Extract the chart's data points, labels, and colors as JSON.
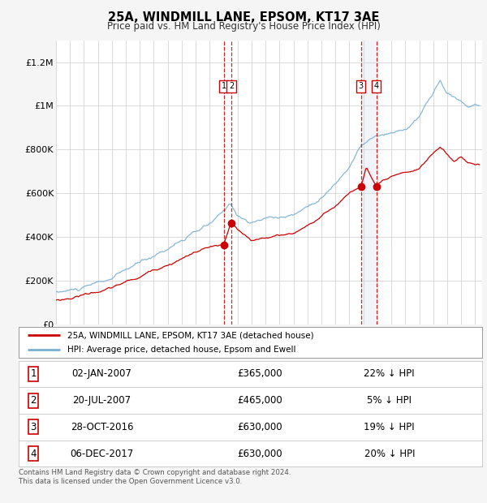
{
  "title": "25A, WINDMILL LANE, EPSOM, KT17 3AE",
  "subtitle": "Price paid vs. HM Land Registry's House Price Index (HPI)",
  "ylim": [
    0,
    1300000
  ],
  "yticks": [
    0,
    200000,
    400000,
    600000,
    800000,
    1000000,
    1200000
  ],
  "ytick_labels": [
    "£0",
    "£200K",
    "£400K",
    "£600K",
    "£800K",
    "£1M",
    "£1.2M"
  ],
  "legend_line1": "25A, WINDMILL LANE, EPSOM, KT17 3AE (detached house)",
  "legend_line2": "HPI: Average price, detached house, Epsom and Ewell",
  "line1_color": "#cc0000",
  "line2_color": "#7ab0d4",
  "sale_year_floats": [
    2007.01,
    2007.55,
    2016.83,
    2017.92
  ],
  "sale_prices": [
    365000,
    465000,
    630000,
    630000
  ],
  "sale_labels": [
    "1",
    "2",
    "3",
    "4"
  ],
  "table_data": [
    [
      "1",
      "02-JAN-2007",
      "£365,000",
      "22% ↓ HPI"
    ],
    [
      "2",
      "20-JUL-2007",
      "£465,000",
      "5% ↓ HPI"
    ],
    [
      "3",
      "28-OCT-2016",
      "£630,000",
      "19% ↓ HPI"
    ],
    [
      "4",
      "06-DEC-2017",
      "£630,000",
      "20% ↓ HPI"
    ]
  ],
  "footnote1": "Contains HM Land Registry data © Crown copyright and database right 2024.",
  "footnote2": "This data is licensed under the Open Government Licence v3.0.",
  "bg_color": "#f5f5f5",
  "plot_bg_color": "#ffffff",
  "grid_color": "#cccccc",
  "vline_color": "#cc0000",
  "shade_color": "#c8d8e8",
  "hpi_anchors_x": [
    1995,
    1997,
    1999,
    2000,
    2001,
    2002,
    2003,
    2004,
    2005,
    2006,
    2007,
    2007.5,
    2008,
    2009,
    2010,
    2011,
    2012,
    2013,
    2014,
    2015,
    2016,
    2016.5,
    2017,
    2017.5,
    2018,
    2019,
    2020,
    2021,
    2022,
    2022.5,
    2023,
    2024,
    2024.5,
    2025
  ],
  "hpi_anchors_y": [
    145000,
    160000,
    195000,
    230000,
    260000,
    290000,
    330000,
    370000,
    400000,
    430000,
    480000,
    520000,
    470000,
    430000,
    450000,
    460000,
    470000,
    510000,
    560000,
    620000,
    700000,
    760000,
    800000,
    820000,
    830000,
    830000,
    850000,
    900000,
    1010000,
    1060000,
    1000000,
    970000,
    940000,
    950000
  ],
  "red_anchors_x": [
    1995,
    1996,
    1997,
    1998,
    1999,
    2000,
    2001,
    2002,
    2003,
    2004,
    2005,
    2006,
    2007.01,
    2007.55,
    2008,
    2009,
    2010,
    2011,
    2012,
    2013,
    2014,
    2015,
    2016,
    2016.83,
    2017.2,
    2017.92,
    2018.5,
    2019,
    2020,
    2021,
    2022,
    2022.5,
    2023,
    2023.5,
    2024,
    2024.5,
    2025
  ],
  "red_anchors_y": [
    110000,
    120000,
    140000,
    155000,
    170000,
    195000,
    215000,
    250000,
    280000,
    310000,
    340000,
    360000,
    365000,
    465000,
    430000,
    370000,
    390000,
    400000,
    410000,
    450000,
    490000,
    540000,
    600000,
    630000,
    720000,
    630000,
    650000,
    660000,
    670000,
    690000,
    760000,
    790000,
    760000,
    720000,
    750000,
    720000,
    710000
  ]
}
